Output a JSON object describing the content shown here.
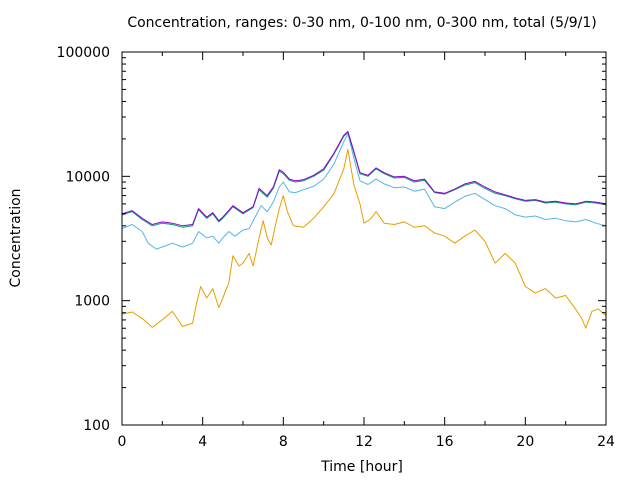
{
  "chart_data": {
    "type": "line",
    "title": "Concentration, ranges: 0-30 nm, 0-100 nm, 0-300 nm, total (5/9/1)",
    "xlabel": "Time [hour]",
    "ylabel": "Concentration",
    "xlim": [
      0,
      24
    ],
    "ylim": [
      100,
      100000
    ],
    "yscale": "log",
    "grid": false,
    "legend": "none",
    "x_ticks": [
      0,
      4,
      8,
      12,
      16,
      20,
      24
    ],
    "x_tick_labels": [
      "0",
      "4",
      "8",
      "12",
      "16",
      "20",
      "24"
    ],
    "y_ticks": [
      100,
      1000,
      10000,
      100000
    ],
    "y_tick_labels": [
      "100",
      "1000",
      "10000",
      "100000"
    ],
    "series": [
      {
        "color": "#e69f00",
        "points": [
          [
            0,
            780
          ],
          [
            0.5,
            810
          ],
          [
            1,
            720
          ],
          [
            1.5,
            610
          ],
          [
            2,
            700
          ],
          [
            2.5,
            820
          ],
          [
            3,
            620
          ],
          [
            3.5,
            660
          ],
          [
            3.7,
            950
          ],
          [
            3.9,
            1300
          ],
          [
            4.2,
            1050
          ],
          [
            4.5,
            1250
          ],
          [
            4.8,
            880
          ],
          [
            5,
            1050
          ],
          [
            5.3,
            1400
          ],
          [
            5.5,
            2300
          ],
          [
            5.8,
            1900
          ],
          [
            6,
            2000
          ],
          [
            6.3,
            2400
          ],
          [
            6.5,
            1900
          ],
          [
            6.8,
            3200
          ],
          [
            7,
            4400
          ],
          [
            7.2,
            3200
          ],
          [
            7.4,
            2800
          ],
          [
            7.6,
            4000
          ],
          [
            7.8,
            5500
          ],
          [
            8,
            7000
          ],
          [
            8.2,
            5200
          ],
          [
            8.5,
            4000
          ],
          [
            9,
            3900
          ],
          [
            9.5,
            4600
          ],
          [
            10,
            5700
          ],
          [
            10.5,
            7200
          ],
          [
            11,
            11500
          ],
          [
            11.2,
            16500
          ],
          [
            11.5,
            8500
          ],
          [
            11.8,
            6000
          ],
          [
            12,
            4200
          ],
          [
            12.3,
            4500
          ],
          [
            12.6,
            5200
          ],
          [
            13,
            4200
          ],
          [
            13.5,
            4100
          ],
          [
            14,
            4300
          ],
          [
            14.5,
            3900
          ],
          [
            15,
            4000
          ],
          [
            15.5,
            3500
          ],
          [
            16,
            3300
          ],
          [
            16.5,
            2900
          ],
          [
            17,
            3300
          ],
          [
            17.5,
            3700
          ],
          [
            18,
            3000
          ],
          [
            18.5,
            2000
          ],
          [
            19,
            2400
          ],
          [
            19.5,
            2000
          ],
          [
            20,
            1300
          ],
          [
            20.5,
            1150
          ],
          [
            21,
            1250
          ],
          [
            21.5,
            1050
          ],
          [
            22,
            1100
          ],
          [
            22.5,
            850
          ],
          [
            22.8,
            720
          ],
          [
            23,
            600
          ],
          [
            23.3,
            820
          ],
          [
            23.6,
            860
          ],
          [
            24,
            760
          ]
        ]
      },
      {
        "color": "#56b4e9",
        "points": [
          [
            0,
            3800
          ],
          [
            0.5,
            4100
          ],
          [
            1,
            3600
          ],
          [
            1.3,
            2900
          ],
          [
            1.7,
            2600
          ],
          [
            2,
            2700
          ],
          [
            2.5,
            2900
          ],
          [
            3,
            2700
          ],
          [
            3.5,
            2900
          ],
          [
            3.8,
            3600
          ],
          [
            4.2,
            3200
          ],
          [
            4.5,
            3300
          ],
          [
            4.8,
            2900
          ],
          [
            5,
            3200
          ],
          [
            5.3,
            3600
          ],
          [
            5.6,
            3300
          ],
          [
            6,
            3700
          ],
          [
            6.3,
            3800
          ],
          [
            6.6,
            4700
          ],
          [
            6.9,
            5800
          ],
          [
            7.2,
            5200
          ],
          [
            7.5,
            6200
          ],
          [
            7.8,
            8200
          ],
          [
            8,
            9000
          ],
          [
            8.3,
            7500
          ],
          [
            8.6,
            7400
          ],
          [
            9,
            7800
          ],
          [
            9.5,
            8300
          ],
          [
            10,
            9500
          ],
          [
            10.5,
            12500
          ],
          [
            11,
            19000
          ],
          [
            11.2,
            22000
          ],
          [
            11.5,
            14000
          ],
          [
            11.8,
            9200
          ],
          [
            12.2,
            8600
          ],
          [
            12.6,
            9500
          ],
          [
            13,
            8700
          ],
          [
            13.5,
            8100
          ],
          [
            14,
            8200
          ],
          [
            14.5,
            7600
          ],
          [
            15,
            7900
          ],
          [
            15.5,
            5700
          ],
          [
            16,
            5500
          ],
          [
            16.5,
            6200
          ],
          [
            17,
            6900
          ],
          [
            17.5,
            7300
          ],
          [
            18,
            6500
          ],
          [
            18.5,
            5800
          ],
          [
            19,
            5500
          ],
          [
            19.5,
            4900
          ],
          [
            20,
            4700
          ],
          [
            20.5,
            4800
          ],
          [
            21,
            4500
          ],
          [
            21.5,
            4600
          ],
          [
            22,
            4400
          ],
          [
            22.5,
            4300
          ],
          [
            23,
            4500
          ],
          [
            23.5,
            4200
          ],
          [
            24,
            4000
          ]
        ]
      },
      {
        "color": "#009e73",
        "points": [
          [
            0,
            4900
          ],
          [
            0.5,
            5200
          ],
          [
            1,
            4500
          ],
          [
            1.5,
            4000
          ],
          [
            2,
            4200
          ],
          [
            2.5,
            4100
          ],
          [
            3,
            3900
          ],
          [
            3.5,
            4000
          ],
          [
            3.8,
            5400
          ],
          [
            4.2,
            4600
          ],
          [
            4.5,
            5000
          ],
          [
            4.8,
            4300
          ],
          [
            5,
            4600
          ],
          [
            5.5,
            5700
          ],
          [
            6,
            5000
          ],
          [
            6.5,
            5600
          ],
          [
            6.8,
            7800
          ],
          [
            7.2,
            6800
          ],
          [
            7.5,
            8000
          ],
          [
            7.8,
            11000
          ],
          [
            8,
            10500
          ],
          [
            8.3,
            9300
          ],
          [
            8.6,
            9000
          ],
          [
            9,
            9200
          ],
          [
            9.5,
            10000
          ],
          [
            10,
            11200
          ],
          [
            10.5,
            15000
          ],
          [
            11,
            21000
          ],
          [
            11.2,
            22500
          ],
          [
            11.5,
            15500
          ],
          [
            11.8,
            10500
          ],
          [
            12.2,
            10000
          ],
          [
            12.6,
            11500
          ],
          [
            13,
            10500
          ],
          [
            13.5,
            9700
          ],
          [
            14,
            9800
          ],
          [
            14.5,
            9000
          ],
          [
            15,
            9300
          ],
          [
            15.5,
            7400
          ],
          [
            16,
            7200
          ],
          [
            16.5,
            7800
          ],
          [
            17,
            8500
          ],
          [
            17.5,
            8900
          ],
          [
            18,
            8000
          ],
          [
            18.5,
            7300
          ],
          [
            19,
            7000
          ],
          [
            19.5,
            6600
          ],
          [
            20,
            6300
          ],
          [
            20.5,
            6400
          ],
          [
            21,
            6100
          ],
          [
            21.5,
            6200
          ],
          [
            22,
            6000
          ],
          [
            22.5,
            5900
          ],
          [
            23,
            6200
          ],
          [
            23.5,
            6100
          ],
          [
            24,
            5900
          ]
        ]
      },
      {
        "color": "#9400d3",
        "points": [
          [
            0,
            5000
          ],
          [
            0.5,
            5300
          ],
          [
            1,
            4600
          ],
          [
            1.5,
            4100
          ],
          [
            2,
            4300
          ],
          [
            2.5,
            4200
          ],
          [
            3,
            4000
          ],
          [
            3.5,
            4100
          ],
          [
            3.8,
            5500
          ],
          [
            4.2,
            4700
          ],
          [
            4.5,
            5100
          ],
          [
            4.8,
            4400
          ],
          [
            5,
            4700
          ],
          [
            5.5,
            5800
          ],
          [
            6,
            5100
          ],
          [
            6.5,
            5700
          ],
          [
            6.8,
            8000
          ],
          [
            7.2,
            7000
          ],
          [
            7.5,
            8200
          ],
          [
            7.8,
            11300
          ],
          [
            8,
            10800
          ],
          [
            8.3,
            9500
          ],
          [
            8.6,
            9200
          ],
          [
            9,
            9400
          ],
          [
            9.5,
            10200
          ],
          [
            10,
            11500
          ],
          [
            10.5,
            15300
          ],
          [
            11,
            21400
          ],
          [
            11.2,
            23000
          ],
          [
            11.5,
            15800
          ],
          [
            11.8,
            10700
          ],
          [
            12.2,
            10200
          ],
          [
            12.6,
            11700
          ],
          [
            13,
            10700
          ],
          [
            13.5,
            9900
          ],
          [
            14,
            10000
          ],
          [
            14.5,
            9200
          ],
          [
            15,
            9500
          ],
          [
            15.5,
            7500
          ],
          [
            16,
            7300
          ],
          [
            16.5,
            7900
          ],
          [
            17,
            8700
          ],
          [
            17.5,
            9100
          ],
          [
            18,
            8200
          ],
          [
            18.5,
            7500
          ],
          [
            19,
            7100
          ],
          [
            19.5,
            6700
          ],
          [
            20,
            6400
          ],
          [
            20.5,
            6500
          ],
          [
            21,
            6200
          ],
          [
            21.5,
            6300
          ],
          [
            22,
            6100
          ],
          [
            22.5,
            6000
          ],
          [
            23,
            6300
          ],
          [
            23.5,
            6200
          ],
          [
            24,
            6000
          ]
        ]
      }
    ]
  }
}
